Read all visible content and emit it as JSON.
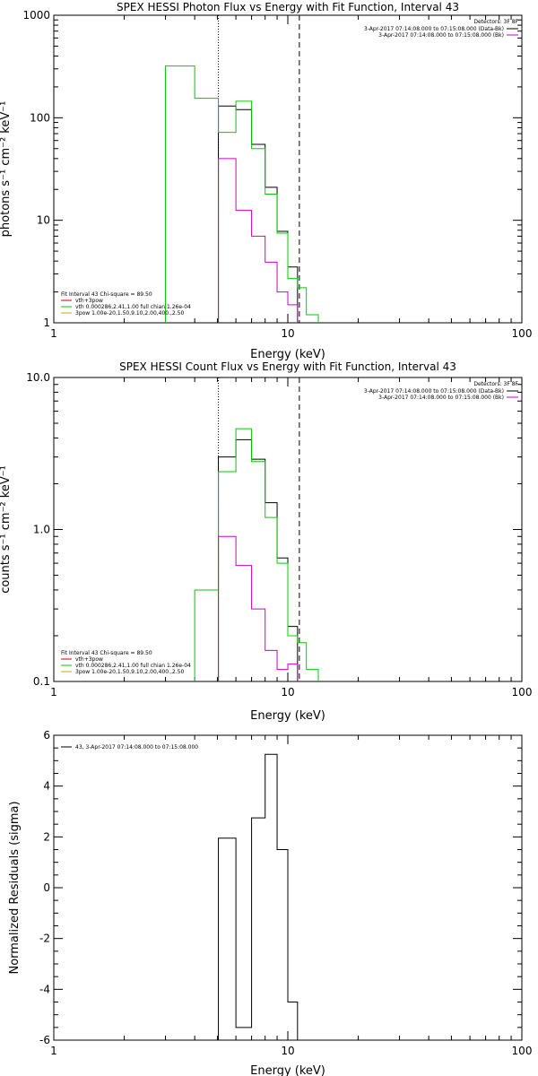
{
  "chart_data": [
    {
      "type": "line",
      "title": "SPEX HESSI Photon Flux vs Energy with Fit Function, Interval 43",
      "xlabel": "Energy (keV)",
      "ylabel": "photons s⁻¹ cm⁻² keV⁻¹",
      "xscale": "log",
      "yscale": "log",
      "xlim": [
        1,
        100
      ],
      "ylim": [
        1,
        1000
      ],
      "x_ticks": [
        "1",
        "10",
        "100"
      ],
      "y_ticks": [
        "1",
        "10",
        "100",
        "1000"
      ],
      "vlines": [
        {
          "x": 5.05,
          "style": "dotted"
        },
        {
          "x": 11.2,
          "style": "dashed"
        }
      ],
      "legend_right": {
        "detectors": "Detectors: 3F 8F",
        "entries": [
          {
            "label": "3-Apr-2017 07:14:08.000 to 07:15:08.000 (Data-Bk)",
            "color": "#000000"
          },
          {
            "label": "3-Apr-2017 07:14:08.000 to 07:15:08.000 (Bk)",
            "color": "#cc00cc"
          }
        ]
      },
      "legend_left": {
        "header": "Fit Interval 43   Chi-square = 89.50",
        "entries": [
          {
            "label": "vth+3pow",
            "color": "#cc0000"
          },
          {
            "label": "vth 0.000286,2.41,1.00  full chian 1.26e-04",
            "color": "#00cc00"
          },
          {
            "label": "3pow 1.00e-20,1.50,9.10,2.00,400.,2.50",
            "color": "#ccaa00"
          }
        ]
      },
      "series": [
        {
          "color": "#000000",
          "edges": [
            5.05,
            6.0,
            7.0,
            8.0,
            9.0,
            10.0,
            11.0
          ],
          "values": [
            130,
            120,
            55,
            21,
            7.8,
            3.5
          ]
        },
        {
          "color": "#00cc00",
          "edges": [
            3.0,
            4.0,
            5.05,
            6.0,
            7.0,
            8.0,
            9.0,
            10.0,
            11.0,
            12.0,
            13.5
          ],
          "values": [
            320,
            155,
            72,
            145,
            50,
            18,
            7.5,
            2.7,
            2.2,
            1.2
          ]
        },
        {
          "color": "#cc00cc",
          "edges": [
            5.05,
            6.0,
            7.0,
            8.0,
            9.0,
            10.0,
            11.0
          ],
          "values": [
            40,
            12.5,
            7.0,
            3.9,
            2.0,
            1.5
          ]
        }
      ]
    },
    {
      "type": "line",
      "title": "SPEX HESSI Count Flux vs Energy with Fit Function, Interval 43",
      "xlabel": "Energy (keV)",
      "ylabel": "counts s⁻¹ cm⁻² keV⁻¹",
      "xscale": "log",
      "yscale": "log",
      "xlim": [
        1,
        100
      ],
      "ylim": [
        0.1,
        10
      ],
      "x_ticks": [
        "1",
        "10",
        "100"
      ],
      "y_ticks": [
        "0.1",
        "1.0",
        "10.0"
      ],
      "vlines": [
        {
          "x": 5.05,
          "style": "dotted"
        },
        {
          "x": 11.2,
          "style": "dashed"
        }
      ],
      "legend_right": {
        "detectors": "Detectors: 3F 8F",
        "entries": [
          {
            "label": "3-Apr-2017 07:14:08.000 to 07:15:08.000 (Data-Bk)",
            "color": "#000000"
          },
          {
            "label": "3-Apr-2017 07:14:08.000 to 07:15:08.000 (Bk)",
            "color": "#cc00cc"
          }
        ]
      },
      "legend_left": {
        "header": "Fit Interval 43   Chi-square = 89.50",
        "entries": [
          {
            "label": "vth+3pow",
            "color": "#cc0000"
          },
          {
            "label": "vth 0.000286,2.41,1.00  full chian 1.26e-04",
            "color": "#00cc00"
          },
          {
            "label": "3pow 1.00e-20,1.50,9.10,2.00,400.,2.50",
            "color": "#ccaa00"
          }
        ]
      },
      "series": [
        {
          "color": "#000000",
          "edges": [
            5.05,
            6.0,
            7.0,
            8.0,
            9.0,
            10.0,
            11.0
          ],
          "values": [
            3.0,
            3.9,
            2.9,
            1.5,
            0.65,
            0.23
          ]
        },
        {
          "color": "#00cc00",
          "edges": [
            4.0,
            5.05,
            6.0,
            7.0,
            8.0,
            9.0,
            10.0,
            11.0,
            12.0,
            13.5
          ],
          "values": [
            0.4,
            2.4,
            4.6,
            2.8,
            1.2,
            0.6,
            0.2,
            0.18,
            0.12
          ]
        },
        {
          "color": "#cc00cc",
          "edges": [
            5.05,
            6.0,
            7.0,
            8.0,
            9.0,
            10.0,
            11.0
          ],
          "values": [
            0.9,
            0.58,
            0.3,
            0.16,
            0.12,
            0.13
          ]
        }
      ]
    },
    {
      "type": "line",
      "title": "",
      "xlabel": "Energy (keV)",
      "ylabel": "Normalized Residuals (sigma)",
      "xscale": "log",
      "yscale": "linear",
      "xlim": [
        1,
        100
      ],
      "ylim": [
        -6,
        6
      ],
      "x_ticks": [
        "1",
        "10",
        "100"
      ],
      "y_ticks": [
        "-6",
        "-4",
        "-2",
        "0",
        "2",
        "4",
        "6"
      ],
      "legend_left": {
        "header": "",
        "entries": [
          {
            "label": "43,  3-Apr-2017 07:14:08.000 to 07:15:08.000",
            "color": "#000000"
          }
        ]
      },
      "series": [
        {
          "color": "#000000",
          "edges": [
            5.05,
            6.0,
            7.0,
            8.0,
            9.0,
            10.0,
            11.0
          ],
          "values": [
            1.95,
            -5.5,
            2.75,
            5.25,
            1.5,
            -4.5
          ]
        }
      ]
    }
  ]
}
